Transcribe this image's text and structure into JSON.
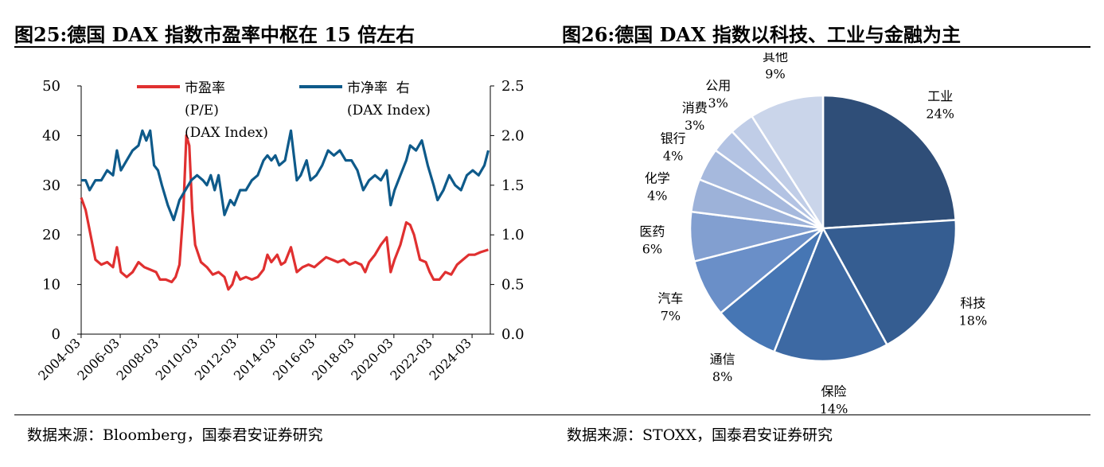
{
  "left": {
    "title": "图25:德国 DAX 指数市盈率中枢在 15 倍左右",
    "source": "数据来源：Bloomberg，国泰君安证券研究",
    "chart_data": {
      "type": "line",
      "x_ticks": [
        "2004-03",
        "2006-03",
        "2008-03",
        "2010-03",
        "2012-03",
        "2014-03",
        "2016-03",
        "2018-03",
        "2020-03",
        "2022-03",
        "2024-03"
      ],
      "x_range": [
        2004.17,
        2025.1
      ],
      "y_left_ticks": [
        "0",
        "10",
        "20",
        "30",
        "40",
        "50"
      ],
      "y_left_range": [
        0,
        50
      ],
      "y_right_ticks": [
        "0.0",
        "0.5",
        "1.0",
        "1.5",
        "2.0",
        "2.5"
      ],
      "y_right_range": [
        0,
        2.5
      ],
      "legend": [
        {
          "key": "pe",
          "lines": [
            "市盈率",
            "(P/E)",
            "(DAX Index)"
          ],
          "color": "#e03030"
        },
        {
          "key": "pb",
          "lines": [
            "市净率  右",
            "(DAX Index)"
          ],
          "color": "#0e5a8a"
        }
      ],
      "series": [
        {
          "key": "pe",
          "axis": "left",
          "color": "#e03030",
          "points": [
            [
              2004.17,
              27.5
            ],
            [
              2004.4,
              25
            ],
            [
              2004.7,
              19
            ],
            [
              2004.9,
              15
            ],
            [
              2005.2,
              14
            ],
            [
              2005.5,
              14.5
            ],
            [
              2005.8,
              13.5
            ],
            [
              2006.0,
              17.5
            ],
            [
              2006.2,
              12.5
            ],
            [
              2006.5,
              11.5
            ],
            [
              2006.8,
              12.5
            ],
            [
              2007.1,
              14.5
            ],
            [
              2007.4,
              13.5
            ],
            [
              2007.7,
              13
            ],
            [
              2008.0,
              12.5
            ],
            [
              2008.2,
              11
            ],
            [
              2008.5,
              11
            ],
            [
              2008.8,
              10.5
            ],
            [
              2009.0,
              11.5
            ],
            [
              2009.2,
              14
            ],
            [
              2009.4,
              25
            ],
            [
              2009.55,
              40
            ],
            [
              2009.7,
              38
            ],
            [
              2009.85,
              25
            ],
            [
              2010.0,
              18
            ],
            [
              2010.3,
              14.5
            ],
            [
              2010.6,
              13.5
            ],
            [
              2010.9,
              12
            ],
            [
              2011.2,
              12.5
            ],
            [
              2011.5,
              11.5
            ],
            [
              2011.7,
              9
            ],
            [
              2011.9,
              10
            ],
            [
              2012.1,
              12.5
            ],
            [
              2012.3,
              11
            ],
            [
              2012.6,
              11.5
            ],
            [
              2012.9,
              11
            ],
            [
              2013.2,
              11.5
            ],
            [
              2013.5,
              13
            ],
            [
              2013.7,
              16
            ],
            [
              2013.9,
              14.5
            ],
            [
              2014.2,
              16
            ],
            [
              2014.4,
              14
            ],
            [
              2014.6,
              14.5
            ],
            [
              2014.9,
              17.5
            ],
            [
              2015.2,
              12.5
            ],
            [
              2015.5,
              13.5
            ],
            [
              2015.8,
              14
            ],
            [
              2016.1,
              13.5
            ],
            [
              2016.4,
              14.5
            ],
            [
              2016.7,
              15.5
            ],
            [
              2017.0,
              15
            ],
            [
              2017.3,
              14.5
            ],
            [
              2017.6,
              15
            ],
            [
              2017.9,
              14
            ],
            [
              2018.2,
              14.5
            ],
            [
              2018.5,
              14
            ],
            [
              2018.7,
              12.5
            ],
            [
              2018.9,
              14.5
            ],
            [
              2019.2,
              16
            ],
            [
              2019.5,
              18
            ],
            [
              2019.8,
              19.5
            ],
            [
              2020.0,
              12.5
            ],
            [
              2020.2,
              15
            ],
            [
              2020.5,
              18
            ],
            [
              2020.8,
              22.5
            ],
            [
              2021.0,
              22
            ],
            [
              2021.2,
              20
            ],
            [
              2021.5,
              15
            ],
            [
              2021.8,
              14.5
            ],
            [
              2022.0,
              12.5
            ],
            [
              2022.2,
              11
            ],
            [
              2022.5,
              11
            ],
            [
              2022.8,
              12.5
            ],
            [
              2023.1,
              12
            ],
            [
              2023.4,
              14
            ],
            [
              2023.7,
              15
            ],
            [
              2024.0,
              16
            ],
            [
              2024.3,
              16
            ],
            [
              2024.6,
              16.5
            ],
            [
              2025.0,
              17
            ]
          ]
        },
        {
          "key": "pb",
          "axis": "right",
          "color": "#0e5a8a",
          "points": [
            [
              2004.17,
              1.55
            ],
            [
              2004.4,
              1.55
            ],
            [
              2004.6,
              1.45
            ],
            [
              2004.9,
              1.55
            ],
            [
              2005.2,
              1.55
            ],
            [
              2005.5,
              1.65
            ],
            [
              2005.8,
              1.6
            ],
            [
              2006.0,
              1.85
            ],
            [
              2006.2,
              1.65
            ],
            [
              2006.5,
              1.75
            ],
            [
              2006.8,
              1.85
            ],
            [
              2007.1,
              1.9
            ],
            [
              2007.3,
              2.05
            ],
            [
              2007.5,
              1.95
            ],
            [
              2007.7,
              2.05
            ],
            [
              2007.9,
              1.7
            ],
            [
              2008.1,
              1.65
            ],
            [
              2008.3,
              1.5
            ],
            [
              2008.6,
              1.3
            ],
            [
              2008.9,
              1.15
            ],
            [
              2009.2,
              1.35
            ],
            [
              2009.5,
              1.45
            ],
            [
              2009.8,
              1.55
            ],
            [
              2010.1,
              1.6
            ],
            [
              2010.4,
              1.55
            ],
            [
              2010.6,
              1.5
            ],
            [
              2010.8,
              1.6
            ],
            [
              2011.0,
              1.45
            ],
            [
              2011.2,
              1.6
            ],
            [
              2011.5,
              1.2
            ],
            [
              2011.8,
              1.35
            ],
            [
              2012.0,
              1.3
            ],
            [
              2012.3,
              1.45
            ],
            [
              2012.6,
              1.45
            ],
            [
              2012.9,
              1.55
            ],
            [
              2013.2,
              1.6
            ],
            [
              2013.5,
              1.75
            ],
            [
              2013.7,
              1.8
            ],
            [
              2013.9,
              1.75
            ],
            [
              2014.1,
              1.8
            ],
            [
              2014.3,
              1.7
            ],
            [
              2014.6,
              1.75
            ],
            [
              2014.9,
              2.05
            ],
            [
              2015.2,
              1.55
            ],
            [
              2015.4,
              1.6
            ],
            [
              2015.7,
              1.75
            ],
            [
              2015.9,
              1.55
            ],
            [
              2016.2,
              1.6
            ],
            [
              2016.5,
              1.7
            ],
            [
              2016.8,
              1.85
            ],
            [
              2017.1,
              1.8
            ],
            [
              2017.4,
              1.85
            ],
            [
              2017.7,
              1.75
            ],
            [
              2018.0,
              1.75
            ],
            [
              2018.3,
              1.65
            ],
            [
              2018.6,
              1.45
            ],
            [
              2018.9,
              1.55
            ],
            [
              2019.2,
              1.6
            ],
            [
              2019.5,
              1.55
            ],
            [
              2019.8,
              1.65
            ],
            [
              2020.0,
              1.3
            ],
            [
              2020.2,
              1.45
            ],
            [
              2020.5,
              1.6
            ],
            [
              2020.8,
              1.75
            ],
            [
              2021.0,
              1.9
            ],
            [
              2021.3,
              1.85
            ],
            [
              2021.6,
              1.95
            ],
            [
              2021.9,
              1.7
            ],
            [
              2022.2,
              1.5
            ],
            [
              2022.4,
              1.35
            ],
            [
              2022.7,
              1.45
            ],
            [
              2023.0,
              1.6
            ],
            [
              2023.3,
              1.5
            ],
            [
              2023.6,
              1.45
            ],
            [
              2023.9,
              1.6
            ],
            [
              2024.2,
              1.65
            ],
            [
              2024.5,
              1.6
            ],
            [
              2024.8,
              1.7
            ],
            [
              2025.0,
              1.85
            ]
          ]
        }
      ]
    }
  },
  "right": {
    "title": "图26:德国 DAX 指数以科技、工业与金融为主",
    "source": "数据来源：STOXX，国泰君安证券研究",
    "chart_data": {
      "type": "pie",
      "slices": [
        {
          "name": "工业",
          "label": "24%",
          "value": 24,
          "color": "#2f4e78"
        },
        {
          "name": "科技",
          "label": "18%",
          "value": 18,
          "color": "#355d91"
        },
        {
          "name": "保险",
          "label": "14%",
          "value": 14,
          "color": "#3d69a3"
        },
        {
          "name": "通信",
          "label": "8%",
          "value": 8,
          "color": "#4676b4"
        },
        {
          "name": "汽车",
          "label": "7%",
          "value": 7,
          "color": "#6a8fc8"
        },
        {
          "name": "医药",
          "label": "6%",
          "value": 6,
          "color": "#829fd0"
        },
        {
          "name": "化学",
          "label": "4%",
          "value": 4,
          "color": "#9db2d9"
        },
        {
          "name": "银行",
          "label": "4%",
          "value": 4,
          "color": "#a6b9dd"
        },
        {
          "name": "消费",
          "label": "3%",
          "value": 3,
          "color": "#b3c3e3"
        },
        {
          "name": "公用",
          "label": "3%",
          "value": 3,
          "color": "#c0cde7"
        },
        {
          "name": "其他",
          "label": "9%",
          "value": 9,
          "color": "#cad5ea"
        }
      ]
    }
  }
}
